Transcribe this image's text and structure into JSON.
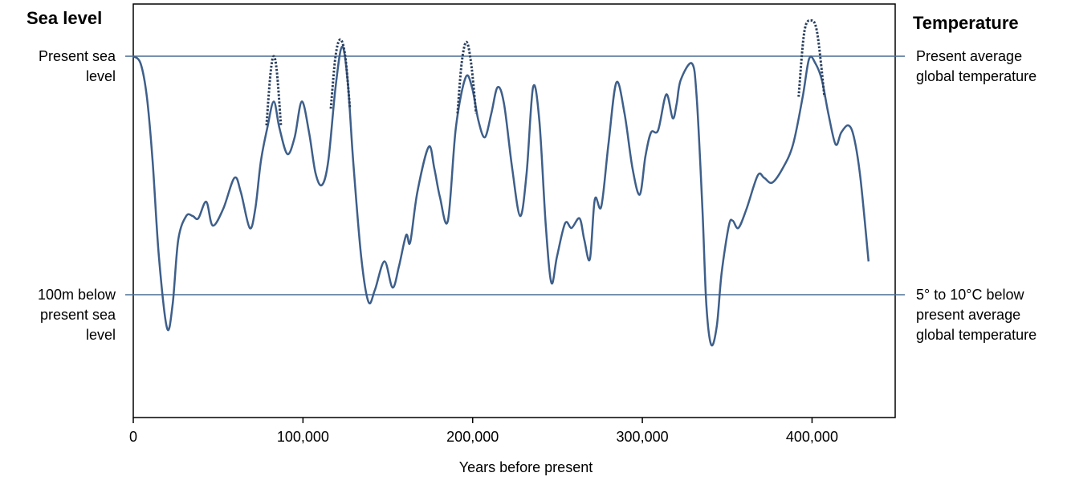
{
  "chart_data": {
    "type": "line",
    "title": "Sea level",
    "y2_title": "Temperature",
    "x_label": "Years before present",
    "xlim": [
      0,
      449000
    ],
    "xticks": [
      0,
      {
        "value": 100000,
        "label": "100,000"
      },
      {
        "value": 200000,
        "label": "200,000"
      },
      {
        "value": 300000,
        "label": "300,000"
      },
      {
        "value": 400000,
        "label": "400,000"
      }
    ],
    "ylim": [
      -151.5,
      21.9
    ],
    "yticks": [
      {
        "value": 0,
        "label": "Present sea level"
      },
      {
        "value": -100,
        "label": "100m below present sea level"
      }
    ],
    "y2lim": [
      -151.5,
      21.9
    ],
    "y2ticks": [
      {
        "value": 0,
        "label": "Present average global temperature"
      },
      {
        "value": -100,
        "label": "5° to 10°C below present average global temperature"
      }
    ],
    "grid": true,
    "grid_color": "#4a6d94",
    "series": [
      {
        "color": "#3e5f8a",
        "style": "solid",
        "x": [
          0,
          4300,
          8000,
          11400,
          15100,
          19900,
          23200,
          26500,
          31200,
          35000,
          38300,
          43000,
          46800,
          53000,
          59600,
          63400,
          68600,
          71900,
          75200,
          79000,
          82800,
          86100,
          90800,
          95100,
          99300,
          103600,
          107400,
          111200,
          114900,
          119200,
          123000,
          126300,
          129600,
          134300,
          138600,
          142400,
          148000,
          152800,
          156600,
          160800,
          163200,
          167400,
          174100,
          177400,
          180700,
          185400,
          190100,
          195800,
          199600,
          203400,
          207200,
          211000,
          214700,
          218500,
          223300,
          228000,
          231800,
          235600,
          239300,
          243100,
          246400,
          249700,
          254500,
          258300,
          263000,
          265800,
          269100,
          272000,
          275800,
          280000,
          284700,
          289500,
          294200,
          298500,
          301800,
          305100,
          309300,
          314100,
          317900,
          320200,
          322600,
          329200,
          332000,
          335400,
          337700,
          340600,
          343900,
          346700,
          351000,
          353300,
          356600,
          361400,
          368000,
          371800,
          376500,
          382700,
          388800,
          394500,
          398300,
          402000,
          405800,
          409600,
          413900,
          417200,
          421400,
          424700,
          428500,
          433300
        ],
        "values": [
          0,
          -3,
          -17,
          -44,
          -84,
          -114,
          -104,
          -77,
          -67,
          -67,
          -68,
          -61,
          -71,
          -64,
          -51,
          -57,
          -72,
          -64,
          -44,
          -30,
          -19,
          -30,
          -41,
          -34,
          -19,
          -32,
          -49,
          -54,
          -44,
          -13,
          4,
          -10,
          -44,
          -84,
          -103,
          -98,
          -86,
          -97,
          -88,
          -75,
          -78,
          -57,
          -38,
          -47,
          -59,
          -69,
          -30,
          -9,
          -13,
          -27,
          -34,
          -24,
          -13,
          -20,
          -47,
          -67,
          -49,
          -13,
          -27,
          -71,
          -95,
          -84,
          -70,
          -72,
          -68,
          -77,
          -85,
          -60,
          -63,
          -37,
          -11,
          -24,
          -47,
          -58,
          -42,
          -32,
          -31,
          -16,
          -26,
          -20,
          -10,
          -3,
          -17,
          -64,
          -104,
          -121,
          -113,
          -91,
          -71,
          -69,
          -72,
          -64,
          -50,
          -51,
          -53,
          -47,
          -37,
          -17,
          -1,
          -3,
          -10,
          -24,
          -37,
          -32,
          -29,
          -34,
          -51,
          -86
        ]
      },
      {
        "color": "#2a3f5f",
        "style": "dotted",
        "x": [
          78500,
          80900,
          82800,
          84700,
          87000
        ],
        "values": [
          -29,
          -7,
          0,
          -7,
          -29
        ]
      },
      {
        "color": "#2a3f5f",
        "style": "dotted",
        "x": [
          116400,
          119200,
          122000,
          124900,
          127700
        ],
        "values": [
          -22,
          0,
          7,
          0,
          -22
        ]
      },
      {
        "color": "#2a3f5f",
        "style": "dotted",
        "x": [
          191100,
          193500,
          196300,
          199100,
          202000
        ],
        "values": [
          -24,
          -3,
          6,
          -3,
          -24
        ]
      },
      {
        "color": "#2a3f5f",
        "style": "dotted",
        "x": [
          392100,
          395400,
          399200,
          403000,
          407300
        ],
        "values": [
          -17,
          10,
          15,
          10,
          -17
        ]
      }
    ]
  }
}
